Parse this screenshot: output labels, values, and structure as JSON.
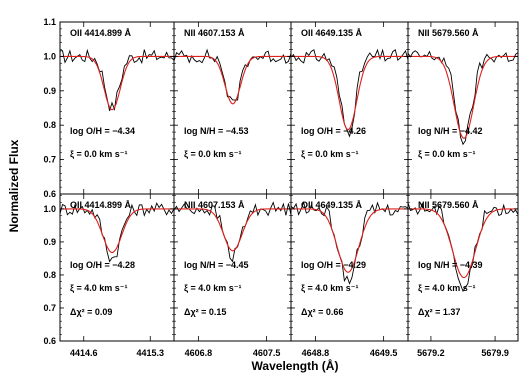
{
  "chart_data": {
    "type": "line",
    "ylabel": "Normalized Flux",
    "xlabel": "Wavelength (Å)",
    "ylim": [
      0.6,
      1.1
    ],
    "yticks": [
      "0.6",
      "0.7",
      "0.8",
      "0.9",
      "1.0",
      "1.1"
    ],
    "columns": [
      {
        "line": "OII 4414.899 Å",
        "xlim": [
          4414.35,
          4415.55
        ],
        "center": 4414.899,
        "xticks": [
          4414.6,
          4415.3
        ],
        "xtick_labels": [
          "4414.6",
          "4415.3"
        ]
      },
      {
        "line": "NII 4607.153 Å",
        "xlim": [
          4606.55,
          4607.75
        ],
        "center": 4607.153,
        "xticks": [
          4606.8,
          4607.5
        ],
        "xtick_labels": [
          "4606.8",
          "4607.5"
        ]
      },
      {
        "line": "OII 4649.135 Å",
        "xlim": [
          4648.55,
          4649.75
        ],
        "center": 4649.135,
        "xticks": [
          4648.8,
          4649.5
        ],
        "xtick_labels": [
          "4648.8",
          "4649.5"
        ]
      },
      {
        "line": "NII 5679.560 Å",
        "xlim": [
          5678.95,
          5680.15
        ],
        "center": 5679.56,
        "xticks": [
          5679.2,
          5679.9
        ],
        "xtick_labels": [
          "5679.2",
          "5679.9"
        ]
      }
    ],
    "rows": [
      {
        "panels": [
          {
            "abundance": "log O/H = −4.34",
            "xi": "ξ = 0.0 km s⁻¹",
            "chi2": "",
            "model_depth": 0.845,
            "obs_depth": 0.85,
            "width": 0.085
          },
          {
            "abundance": "log N/H = −4.53",
            "xi": "ξ = 0.0 km s⁻¹",
            "chi2": "",
            "model_depth": 0.862,
            "obs_depth": 0.856,
            "width": 0.08
          },
          {
            "abundance": "log O/H = −4.26",
            "xi": "ξ = 0.0 km s⁻¹",
            "chi2": "",
            "model_depth": 0.787,
            "obs_depth": 0.782,
            "width": 0.09
          },
          {
            "abundance": "log N/H = −4.42",
            "xi": "ξ = 0.0 km s⁻¹",
            "chi2": "",
            "model_depth": 0.762,
            "obs_depth": 0.757,
            "width": 0.105
          }
        ]
      },
      {
        "panels": [
          {
            "abundance": "log O/H = −4.28",
            "xi": "ξ = 4.0 km s⁻¹",
            "chi2": "Δχ² = 0.09",
            "model_depth": 0.868,
            "obs_depth": 0.85,
            "width": 0.1
          },
          {
            "abundance": "log N/H = −4.45",
            "xi": "ξ = 4.0 km s⁻¹",
            "chi2": "Δχ² = 0.15",
            "model_depth": 0.873,
            "obs_depth": 0.856,
            "width": 0.095
          },
          {
            "abundance": "log O/H = −4.29",
            "xi": "ξ = 4.0 km s⁻¹",
            "chi2": "Δχ² = 0.66",
            "model_depth": 0.808,
            "obs_depth": 0.782,
            "width": 0.11
          },
          {
            "abundance": "log N/H = −4.39",
            "xi": "ξ = 4.0 km s⁻¹",
            "chi2": "Δχ² = 1.37",
            "model_depth": 0.792,
            "obs_depth": 0.757,
            "width": 0.125
          }
        ]
      }
    ],
    "series": [
      {
        "role": "observed",
        "color": "#000000"
      },
      {
        "role": "model",
        "color": "#e0201b"
      }
    ]
  }
}
